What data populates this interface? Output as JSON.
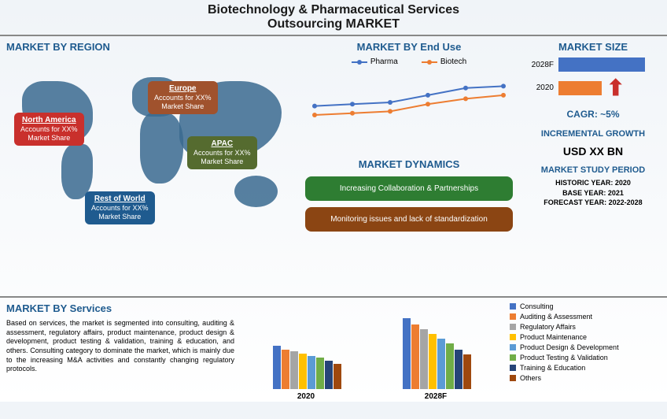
{
  "title_line1": "Biotechnology & Pharmaceutical Services",
  "title_line2": "Outsourcing MARKET",
  "sections": {
    "region_title": "MARKET BY REGION",
    "enduse_title": "MARKET BY End Use",
    "size_title": "MARKET SIZE",
    "dynamics_title": "MARKET DYNAMICS",
    "incremental_title": "INCREMENTAL GROWTH",
    "study_title": "MARKET STUDY PERIOD",
    "services_title": "MARKET BY Services"
  },
  "regions": {
    "na": {
      "name": "North America",
      "sub1": "Accounts for XX%",
      "sub2": "Market Share"
    },
    "eu": {
      "name": "Europe",
      "sub1": "Accounts for XX%",
      "sub2": "Market Share"
    },
    "apac": {
      "name": "APAC",
      "sub1": "Accounts for XX%",
      "sub2": "Market Share"
    },
    "row": {
      "name": "Rest of World",
      "sub1": "Accounts for XX%",
      "sub2": "Market Share"
    }
  },
  "enduse": {
    "series": [
      {
        "name": "Pharma",
        "color": "#4472c4",
        "values": [
          38,
          40,
          42,
          50,
          58,
          60
        ]
      },
      {
        "name": "Biotech",
        "color": "#ed7d31",
        "values": [
          28,
          30,
          32,
          40,
          46,
          50
        ]
      }
    ],
    "ylim": [
      0,
      70
    ],
    "points": 6
  },
  "dynamics": {
    "positive": "Increasing Collaboration & Partnerships",
    "negative": "Monitoring issues and lack of standardization"
  },
  "market_size": {
    "rows": [
      {
        "label": "2028F",
        "width": 110,
        "color": "#4472c4"
      },
      {
        "label": "2020",
        "width": 55,
        "color": "#ed7d31"
      }
    ],
    "cagr": "CAGR:  ~5%",
    "usd": "USD XX BN"
  },
  "study": {
    "historic": "HISTORIC YEAR: 2020",
    "base": "BASE YEAR: 2021",
    "forecast": "FORECAST YEAR: 2022-2028"
  },
  "services_text": "Based on services, the market is segmented into consulting, auditing & assessment, regulatory affairs, product maintenance, product design & development, product testing & validation, training & education, and others. Consulting category to dominate the market, which is mainly due to the increasing M&A activities and constantly changing regulatory protocols.",
  "services_chart": {
    "categories": [
      "2020",
      "2028F"
    ],
    "colors": [
      "#4472c4",
      "#ed7d31",
      "#a5a5a5",
      "#ffc000",
      "#5b9bd5",
      "#70ad47",
      "#264478",
      "#9e480e"
    ],
    "legend": [
      "Consulting",
      "Auditing & Assessment",
      "Regulatory Affairs",
      "Product Maintenance",
      "Product Design & Development",
      "Product Testing & Validation",
      "Training & Education",
      "Others"
    ],
    "data": [
      [
        55,
        50,
        48,
        45,
        42,
        40,
        36,
        32
      ],
      [
        90,
        82,
        76,
        70,
        64,
        58,
        50,
        44
      ]
    ]
  }
}
